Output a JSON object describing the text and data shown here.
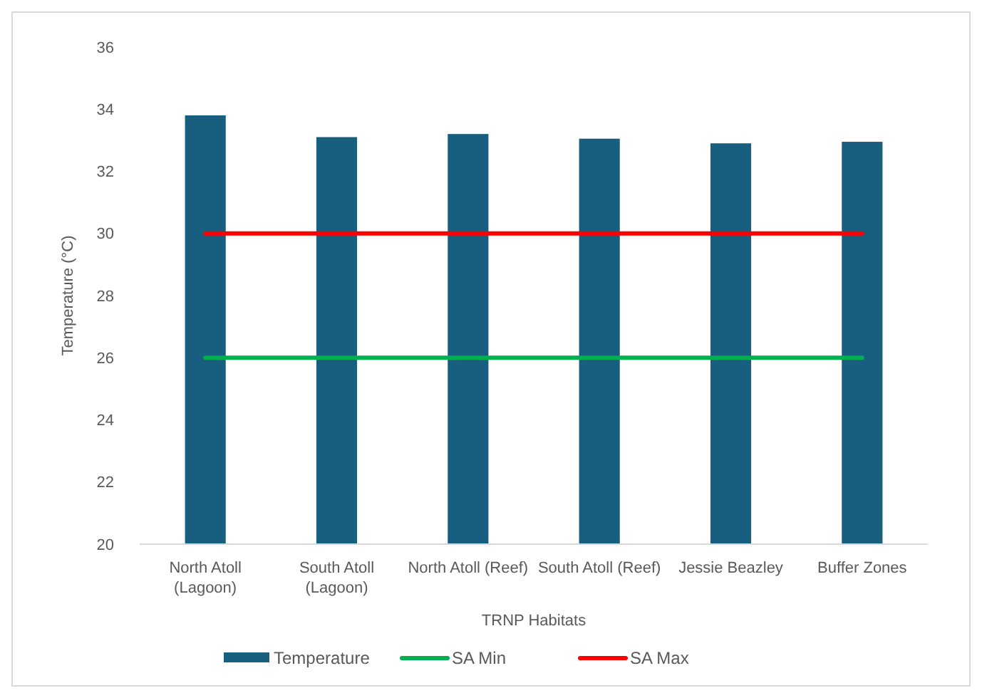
{
  "chart_data": {
    "type": "bar",
    "xlabel": "TRNP Habitats",
    "ylabel": "Temperature (°C)",
    "categories": [
      "North Atoll (Lagoon)",
      "South Atoll (Lagoon)",
      "North Atoll (Reef)",
      "South Atoll (Reef)",
      "Jessie Beazley",
      "Buffer Zones"
    ],
    "series": [
      {
        "name": "Temperature",
        "color": "#175e7f",
        "values": [
          33.8,
          33.1,
          33.2,
          33.05,
          32.9,
          32.95
        ]
      },
      {
        "name": "SA Min",
        "type": "line",
        "color": "#00b050",
        "values": [
          26,
          26,
          26,
          26,
          26,
          26
        ]
      },
      {
        "name": "SA Max",
        "type": "line",
        "color": "#ff0000",
        "values": [
          30,
          30,
          30,
          30,
          30,
          30
        ]
      }
    ],
    "ylim": [
      20,
      36
    ],
    "yticks": [
      20,
      22,
      24,
      26,
      28,
      30,
      32,
      34,
      36
    ],
    "grid": false,
    "legend": "bottom",
    "marker": "none",
    "line_style": "solid"
  }
}
